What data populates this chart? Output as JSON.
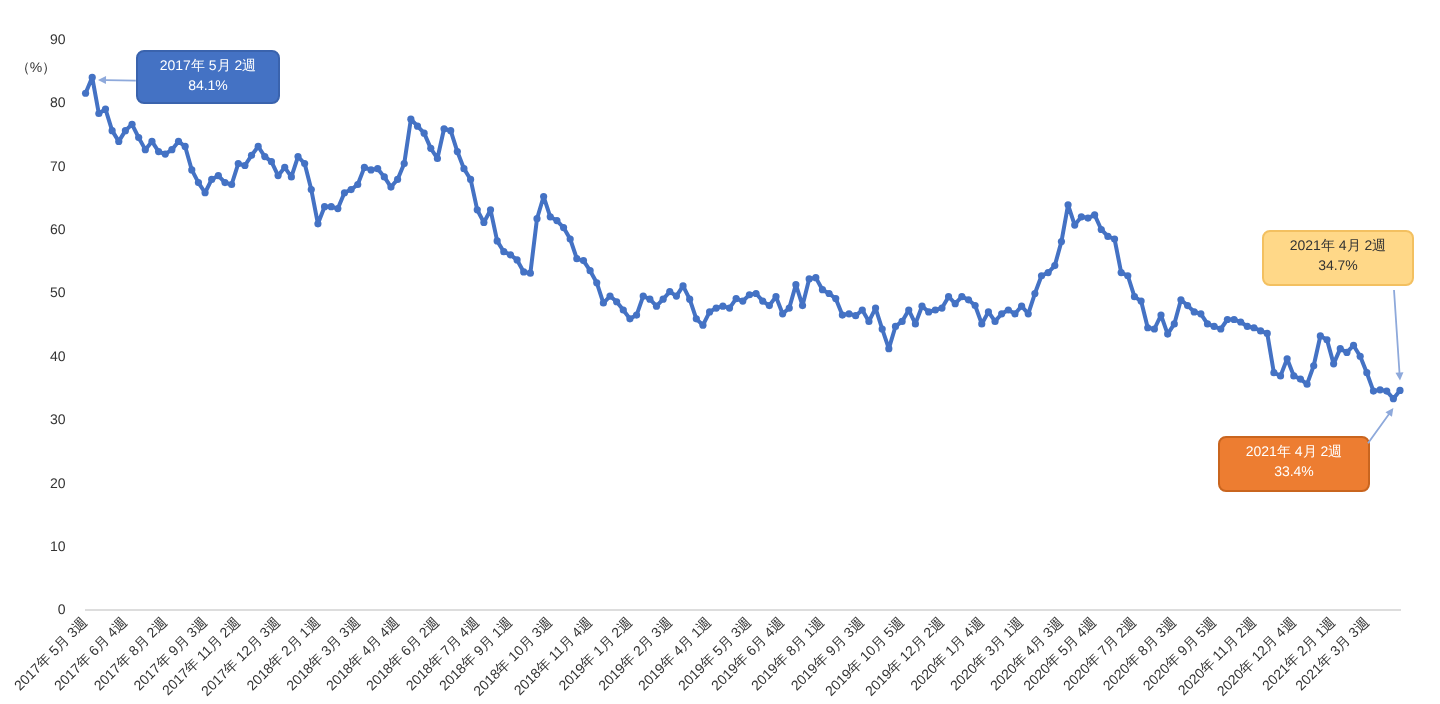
{
  "chart_data": {
    "type": "line",
    "ylabel": "（%）",
    "categories": [
      "2017年 5月 3週",
      null,
      null,
      null,
      null,
      null,
      "2017年 6月 4週",
      null,
      null,
      null,
      null,
      null,
      "2017年 8月 2週",
      null,
      null,
      null,
      null,
      null,
      "2017年 9月 3週",
      null,
      null,
      null,
      null,
      "2017年 11月 2週",
      null,
      null,
      null,
      null,
      null,
      "2017年 12月 3週",
      null,
      null,
      null,
      null,
      null,
      "2018年 2月 1週",
      null,
      null,
      null,
      null,
      null,
      "2018年 3月 3週",
      null,
      null,
      null,
      null,
      null,
      "2018年 4月 4週",
      null,
      null,
      null,
      null,
      null,
      "2018年 6月 2週",
      null,
      null,
      null,
      null,
      null,
      "2018年 7月 4週",
      null,
      null,
      null,
      null,
      "2018年 9月 1週",
      null,
      null,
      null,
      null,
      null,
      "2018年 10月 3週",
      null,
      null,
      null,
      null,
      null,
      "2018年 11月 4週",
      null,
      null,
      null,
      null,
      null,
      "2019年 1月 2週",
      null,
      null,
      null,
      null,
      null,
      "2019年 2月 3週",
      null,
      null,
      null,
      null,
      null,
      "2019年 4月 1週",
      null,
      null,
      null,
      null,
      null,
      "2019年 5月 3週",
      null,
      null,
      null,
      null,
      "2019年 6月 4週",
      null,
      null,
      null,
      null,
      null,
      "2019年 8月 1週",
      null,
      null,
      null,
      null,
      null,
      "2019年 9月 3週",
      null,
      null,
      null,
      null,
      null,
      "2019年 10月 5週",
      null,
      null,
      null,
      null,
      null,
      "2019年 12月 2週",
      null,
      null,
      null,
      null,
      null,
      "2020年 1月 4週",
      null,
      null,
      null,
      null,
      null,
      "2020年 3月 1週",
      null,
      null,
      null,
      null,
      null,
      "2020年 4月 3週",
      null,
      null,
      null,
      null,
      "2020年 5月 4週",
      null,
      null,
      null,
      null,
      null,
      "2020年 7月 2週",
      null,
      null,
      null,
      null,
      null,
      "2020年 8月 3週",
      null,
      null,
      null,
      null,
      null,
      "2020年 9月 5週",
      null,
      null,
      null,
      null,
      null,
      "2020年 11月 2週",
      null,
      null,
      null,
      null,
      null,
      "2020年 12月 4週",
      null,
      null,
      null,
      null,
      null,
      "2021年 2月 1週",
      null,
      null,
      null,
      null,
      "2021年 3月 3週",
      null,
      null,
      null,
      null,
      null
    ],
    "series": [
      {
        "color": "#4472c4",
        "values": [
          81.6,
          84.1,
          78.4,
          79.1,
          75.7,
          74,
          75.7,
          76.7,
          74.6,
          72.7,
          74,
          72.4,
          72,
          72.7,
          74,
          73.2,
          69.5,
          67.5,
          65.9,
          68,
          68.6,
          67.5,
          67.2,
          70.5,
          70.2,
          71.8,
          73.2,
          71.6,
          70.8,
          68.6,
          69.9,
          68.4,
          71.6,
          70.5,
          66.4,
          61,
          63.7,
          63.7,
          63.4,
          65.9,
          66.4,
          67.2,
          69.9,
          69.5,
          69.7,
          68.4,
          66.8,
          68,
          70.5,
          77.5,
          76.4,
          75.3,
          72.9,
          71.3,
          76,
          75.7,
          72.4,
          69.7,
          68,
          63.2,
          61.2,
          63.2,
          58.3,
          56.6,
          56.1,
          55.3,
          53.4,
          53.2,
          61.8,
          65.3,
          62.1,
          61.5,
          60.4,
          58.6,
          55.5,
          55.2,
          53.6,
          51.7,
          48.5,
          49.6,
          48.7,
          47.4,
          46,
          46.6,
          49.6,
          49.1,
          48,
          49.1,
          50.3,
          49.6,
          51.2,
          49.1,
          46,
          45,
          47.1,
          47.7,
          48,
          47.7,
          49.2,
          48.8,
          49.8,
          50,
          48.8,
          48.1,
          49.5,
          46.8,
          47.7,
          51.4,
          48.1,
          52.3,
          52.5,
          50.6,
          50,
          49.2,
          46.6,
          46.8,
          46.5,
          47.4,
          45.6,
          47.7,
          44.4,
          41.3,
          44.8,
          45.6,
          47.4,
          45.2,
          48,
          47.1,
          47.4,
          47.7,
          49.5,
          48.4,
          49.5,
          49,
          48.1,
          45.2,
          47.1,
          45.6,
          46.8,
          47.4,
          46.8,
          48,
          46.8,
          50,
          52.8,
          53.3,
          54.4,
          58.2,
          64,
          60.8,
          62.1,
          61.9,
          62.4,
          60.1,
          59,
          58.6,
          53.3,
          52.8,
          49.5,
          48.8,
          44.6,
          44.4,
          46.6,
          43.6,
          45.2,
          49,
          48.1,
          47.1,
          46.8,
          45.2,
          44.8,
          44.4,
          45.9,
          45.9,
          45.5,
          44.8,
          44.6,
          44.1,
          43.7,
          37.5,
          37,
          39.7,
          37,
          36.5,
          35.7,
          38.6,
          43.3,
          42.7,
          38.9,
          41.3,
          40.7,
          41.8,
          40.1,
          37.5,
          34.6,
          34.8,
          34.6,
          33.4,
          34.7
        ]
      }
    ],
    "ylim": [
      0,
      90
    ],
    "yticks": [
      0,
      10,
      20,
      30,
      40,
      50,
      60,
      70,
      80,
      90
    ],
    "marker": "circle",
    "annotations": [
      "2017年 5月 2週\n84.1%",
      "2021年 4月 2週\n34.7%",
      "2021年 4月 2週\n33.4%"
    ]
  }
}
